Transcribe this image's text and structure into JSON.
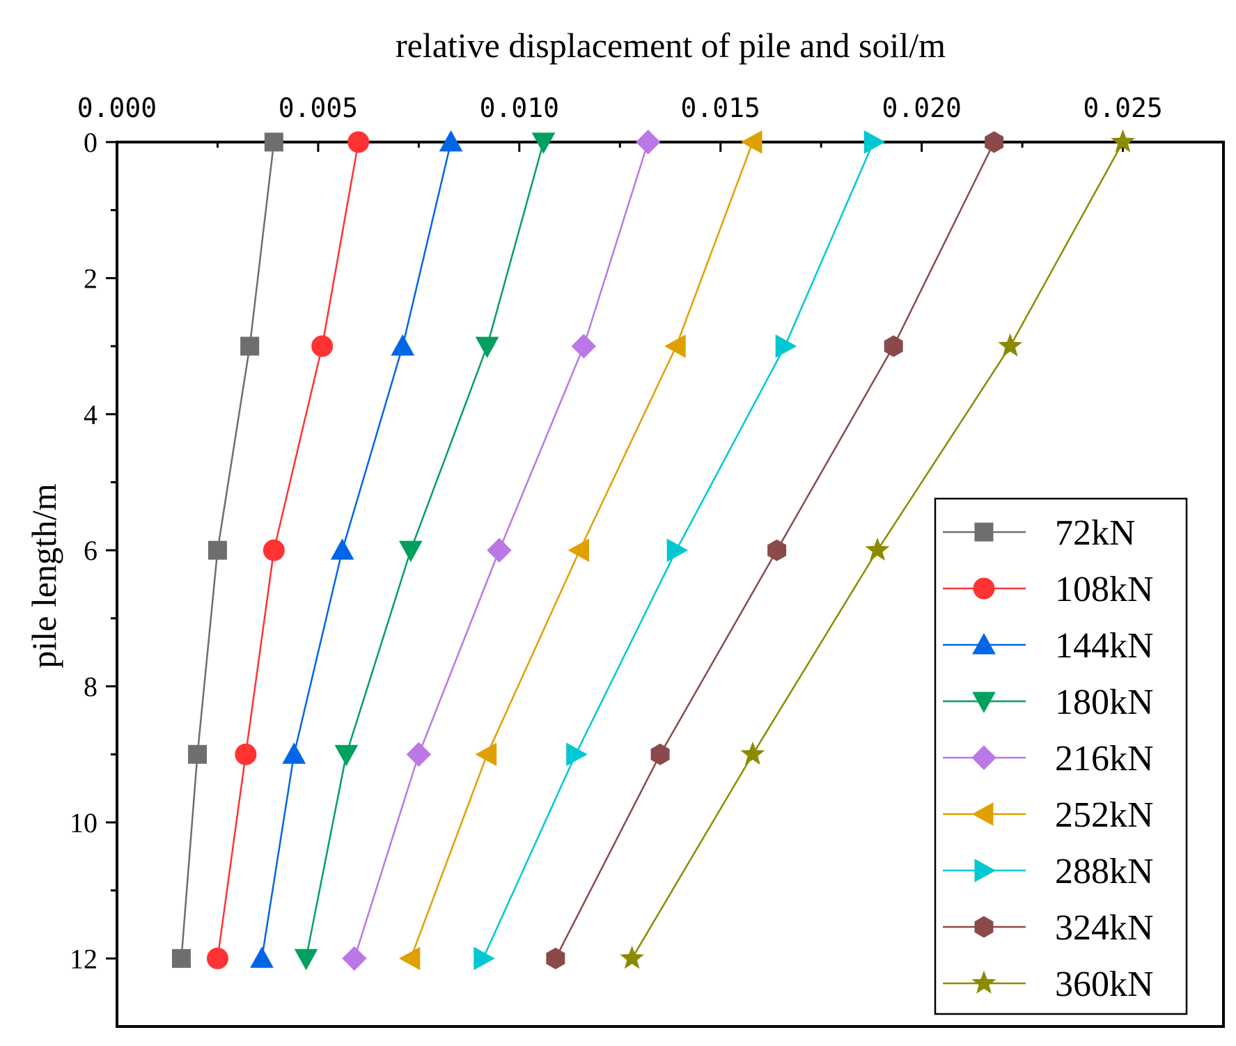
{
  "chart_data": {
    "type": "line",
    "title": "",
    "xlabel": "relative displacement of pile and soil/m",
    "ylabel": "pile length/m",
    "xlim": [
      0.0,
      0.0275
    ],
    "ylim": [
      13,
      0
    ],
    "x_axis_position": "top",
    "y_inverted": true,
    "x_ticks": [
      0.0,
      0.005,
      0.01,
      0.015,
      0.02,
      0.025
    ],
    "x_tick_labels": [
      "0.000",
      "0.005",
      "0.010",
      "0.015",
      "0.020",
      "0.025"
    ],
    "y_ticks": [
      0,
      2,
      4,
      6,
      8,
      10,
      12
    ],
    "y_tick_labels": [
      "0",
      "2",
      "4",
      "6",
      "8",
      "10",
      "12"
    ],
    "y_minor_ticks": [
      1,
      3,
      5,
      7,
      9,
      11
    ],
    "grid": false,
    "legend_position": "bottom-right",
    "depths": [
      0,
      3,
      6,
      9,
      12
    ],
    "series": [
      {
        "name": "72kN",
        "color": "#6e6e6e",
        "marker": "square",
        "values": [
          0.0039,
          0.0033,
          0.0025,
          0.002,
          0.0016
        ]
      },
      {
        "name": "108kN",
        "color": "#ff3333",
        "marker": "circle",
        "values": [
          0.006,
          0.0051,
          0.0039,
          0.0032,
          0.0025
        ]
      },
      {
        "name": "144kN",
        "color": "#0066e6",
        "marker": "triangle-up",
        "values": [
          0.0083,
          0.0071,
          0.0056,
          0.0044,
          0.0036
        ]
      },
      {
        "name": "180kN",
        "color": "#00a060",
        "marker": "triangle-down",
        "values": [
          0.0106,
          0.0092,
          0.0073,
          0.0057,
          0.0047
        ]
      },
      {
        "name": "216kN",
        "color": "#bb77e6",
        "marker": "diamond",
        "values": [
          0.0132,
          0.0116,
          0.0095,
          0.0075,
          0.0059
        ]
      },
      {
        "name": "252kN",
        "color": "#e0a000",
        "marker": "triangle-left",
        "values": [
          0.0158,
          0.0139,
          0.0115,
          0.0092,
          0.0073
        ]
      },
      {
        "name": "288kN",
        "color": "#00c8d2",
        "marker": "triangle-right",
        "values": [
          0.0188,
          0.0166,
          0.0139,
          0.0114,
          0.0091
        ]
      },
      {
        "name": "324kN",
        "color": "#8b4a4a",
        "marker": "hexagon",
        "values": [
          0.0218,
          0.0193,
          0.0164,
          0.0135,
          0.0109
        ]
      },
      {
        "name": "360kN",
        "color": "#8b8b00",
        "marker": "star",
        "values": [
          0.025,
          0.0222,
          0.0189,
          0.0158,
          0.0128
        ]
      }
    ]
  }
}
